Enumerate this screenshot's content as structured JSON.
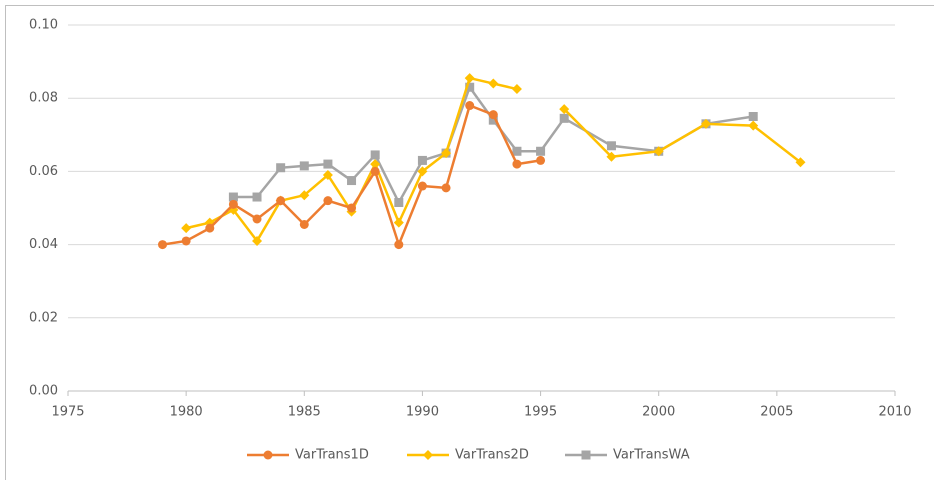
{
  "chart_data": {
    "type": "line",
    "xlim": [
      1975,
      2010
    ],
    "xticks": [
      1975,
      1980,
      1985,
      1990,
      1995,
      2000,
      2005,
      2010
    ],
    "ylim": [
      0,
      0.1
    ],
    "yticks": [
      {
        "value": 0,
        "label": "0.00"
      },
      {
        "value": 0.02,
        "label": "0.02"
      },
      {
        "value": 0.04,
        "label": "0.04"
      },
      {
        "value": 0.06,
        "label": "0.06"
      },
      {
        "value": 0.08,
        "label": "0.08"
      },
      {
        "value": 0.1,
        "label": "0.10"
      }
    ],
    "grid": true,
    "legend": "bottom",
    "series": [
      {
        "name": "VarTrans1D",
        "color": "#ed7d31",
        "marker": "circle",
        "x": [
          1979,
          1980,
          1981,
          1982,
          1983,
          1984,
          1985,
          1986,
          1987,
          1988,
          1989,
          1990,
          1991,
          1992,
          1993,
          1994,
          1995
        ],
        "values": [
          0.04,
          0.041,
          0.0445,
          0.051,
          0.047,
          0.052,
          0.0455,
          0.052,
          0.05,
          0.06,
          0.04,
          0.056,
          0.0555,
          0.078,
          0.0755,
          0.062,
          0.063
        ]
      },
      {
        "name": "VarTrans2D",
        "color": "#ffc000",
        "marker": "diamond",
        "x": [
          1980,
          1981,
          1982,
          1983,
          1984,
          1985,
          1986,
          1987,
          1988,
          1989,
          1990,
          1991,
          1992,
          1993,
          1994,
          1995,
          1996,
          1998,
          2000,
          2002,
          2004,
          2006
        ],
        "values": [
          0.0445,
          0.046,
          0.0495,
          0.041,
          0.052,
          0.0535,
          0.059,
          0.049,
          0.062,
          0.046,
          0.06,
          0.065,
          0.0855,
          0.084,
          0.0825,
          null,
          0.077,
          0.064,
          0.0655,
          0.073,
          0.0725,
          0.0625
        ]
      },
      {
        "name": "VarTransWA",
        "color": "#a5a5a5",
        "marker": "square",
        "x": [
          1982,
          1983,
          1984,
          1985,
          1986,
          1987,
          1988,
          1989,
          1990,
          1991,
          1992,
          1993,
          1994,
          1995,
          1996,
          1998,
          2000,
          2002,
          2004
        ],
        "values": [
          0.053,
          0.053,
          0.061,
          0.0615,
          0.062,
          0.0575,
          0.0645,
          0.0515,
          0.063,
          0.065,
          0.083,
          0.074,
          0.0655,
          0.0655,
          0.0745,
          0.067,
          0.0655,
          0.073,
          0.075
        ]
      }
    ]
  }
}
